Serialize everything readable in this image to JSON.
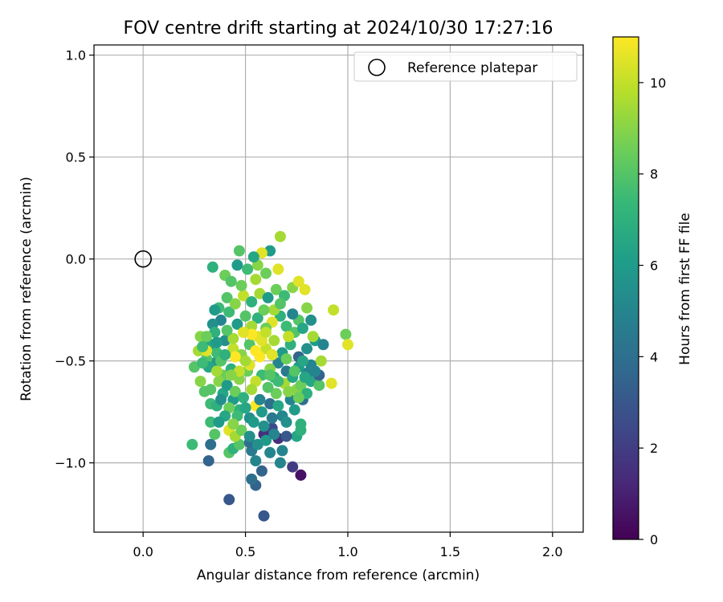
{
  "chart_data": {
    "type": "scatter",
    "title": "FOV centre drift starting at 2024/10/30 17:27:16",
    "xlabel": "Angular distance from reference (arcmin)",
    "ylabel": "Rotation from reference (arcmin)",
    "xlim": [
      -0.24,
      2.15
    ],
    "ylim": [
      -1.34,
      1.05
    ],
    "xticks": [
      0.0,
      0.5,
      1.0,
      1.5,
      2.0
    ],
    "xtick_labels": [
      "0.0",
      "0.5",
      "1.0",
      "1.5",
      "2.0"
    ],
    "yticks": [
      1.0,
      0.5,
      0.0,
      -0.5,
      -1.0
    ],
    "ytick_labels": [
      "1.0",
      "0.5",
      "0.0",
      "−0.5",
      "−1.0"
    ],
    "grid": true,
    "legend": {
      "position": "upper right",
      "entries": [
        {
          "label": "Reference platepar",
          "marker": "open-circle"
        }
      ]
    },
    "reference_point": {
      "x": 0.0,
      "y": 0.0
    },
    "colorbar": {
      "label": "Hours from first FF file",
      "colormap": "viridis",
      "range": [
        0,
        11
      ],
      "ticks": [
        0,
        2,
        4,
        6,
        8,
        10
      ],
      "tick_labels": [
        "0",
        "2",
        "4",
        "6",
        "8",
        "10"
      ]
    },
    "points": [
      [
        0.59,
        -1.26,
        3.0
      ],
      [
        0.42,
        -1.18,
        3.0
      ],
      [
        0.55,
        -1.11,
        3.5
      ],
      [
        0.58,
        -1.04,
        3.5
      ],
      [
        0.53,
        -1.08,
        4.0
      ],
      [
        0.32,
        -0.99,
        3.5
      ],
      [
        0.73,
        -1.02,
        2.0
      ],
      [
        0.77,
        -1.06,
        0.5
      ],
      [
        0.55,
        -0.99,
        5.0
      ],
      [
        0.67,
        -1.0,
        5.0
      ],
      [
        0.24,
        -0.91,
        7.5
      ],
      [
        0.33,
        -0.91,
        4.0
      ],
      [
        0.42,
        -0.95,
        8.0
      ],
      [
        0.44,
        -0.93,
        7.0
      ],
      [
        0.47,
        -0.91,
        8.0
      ],
      [
        0.53,
        -0.94,
        4.5
      ],
      [
        0.62,
        -0.95,
        5.0
      ],
      [
        0.68,
        -0.94,
        5.0
      ],
      [
        0.75,
        -0.87,
        6.5
      ],
      [
        0.77,
        -0.84,
        7.0
      ],
      [
        0.59,
        -0.86,
        1.5
      ],
      [
        0.66,
        -0.88,
        1.5
      ],
      [
        0.63,
        -0.83,
        2.5
      ],
      [
        0.7,
        -0.87,
        3.0
      ],
      [
        0.52,
        -0.9,
        4.0
      ],
      [
        0.35,
        -0.86,
        8.0
      ],
      [
        0.33,
        -0.8,
        7.5
      ],
      [
        0.42,
        -0.84,
        10.5
      ],
      [
        0.45,
        -0.87,
        9.5
      ],
      [
        0.77,
        -0.81,
        7.0
      ],
      [
        0.33,
        -0.71,
        7.5
      ],
      [
        0.36,
        -0.72,
        7.0
      ],
      [
        0.39,
        -0.66,
        6.5
      ],
      [
        0.28,
        -0.6,
        9.0
      ],
      [
        0.3,
        -0.65,
        8.0
      ],
      [
        0.44,
        -0.69,
        6.0
      ],
      [
        0.47,
        -0.74,
        7.0
      ],
      [
        0.55,
        -0.72,
        11.0
      ],
      [
        0.52,
        -0.78,
        5.5
      ],
      [
        0.58,
        -0.75,
        6.0
      ],
      [
        0.62,
        -0.71,
        4.0
      ],
      [
        0.68,
        -0.77,
        5.0
      ],
      [
        0.65,
        -0.66,
        8.5
      ],
      [
        0.72,
        -0.69,
        5.0
      ],
      [
        0.75,
        -0.64,
        9.0
      ],
      [
        0.78,
        -0.69,
        4.0
      ],
      [
        0.82,
        -0.6,
        6.5
      ],
      [
        0.86,
        -0.62,
        8.0
      ],
      [
        0.92,
        -0.61,
        10.5
      ],
      [
        0.86,
        -0.57,
        3.5
      ],
      [
        0.8,
        -0.56,
        5.0
      ],
      [
        0.76,
        -0.53,
        6.0
      ],
      [
        0.7,
        -0.55,
        4.5
      ],
      [
        0.66,
        -0.51,
        5.0
      ],
      [
        0.62,
        -0.54,
        9.0
      ],
      [
        0.58,
        -0.57,
        7.5
      ],
      [
        0.55,
        -0.6,
        10.0
      ],
      [
        0.51,
        -0.55,
        8.5
      ],
      [
        0.47,
        -0.59,
        9.0
      ],
      [
        0.43,
        -0.54,
        7.0
      ],
      [
        0.39,
        -0.57,
        8.5
      ],
      [
        0.35,
        -0.51,
        6.0
      ],
      [
        0.31,
        -0.49,
        8.0
      ],
      [
        0.27,
        -0.45,
        9.5
      ],
      [
        0.25,
        -0.53,
        8.0
      ],
      [
        0.28,
        -0.38,
        9.0
      ],
      [
        0.33,
        -0.42,
        6.5
      ],
      [
        0.36,
        -0.46,
        7.5
      ],
      [
        0.4,
        -0.4,
        5.5
      ],
      [
        0.44,
        -0.44,
        10.0
      ],
      [
        0.48,
        -0.47,
        9.0
      ],
      [
        0.52,
        -0.42,
        8.0
      ],
      [
        0.56,
        -0.38,
        10.5
      ],
      [
        0.6,
        -0.44,
        10.0
      ],
      [
        0.64,
        -0.4,
        9.5
      ],
      [
        0.68,
        -0.46,
        6.0
      ],
      [
        0.72,
        -0.42,
        7.0
      ],
      [
        0.76,
        -0.48,
        3.5
      ],
      [
        0.8,
        -0.44,
        5.5
      ],
      [
        0.84,
        -0.4,
        6.0
      ],
      [
        0.88,
        -0.42,
        5.0
      ],
      [
        0.87,
        -0.5,
        9.5
      ],
      [
        0.82,
        -0.52,
        5.0
      ],
      [
        0.78,
        -0.5,
        6.5
      ],
      [
        0.99,
        -0.37,
        8.5
      ],
      [
        1.0,
        -0.42,
        10.5
      ],
      [
        0.93,
        -0.25,
        10.0
      ],
      [
        0.83,
        -0.38,
        9.5
      ],
      [
        0.8,
        -0.24,
        9.0
      ],
      [
        0.76,
        -0.3,
        8.0
      ],
      [
        0.73,
        -0.27,
        5.0
      ],
      [
        0.7,
        -0.33,
        7.5
      ],
      [
        0.67,
        -0.28,
        7.0
      ],
      [
        0.63,
        -0.31,
        10.5
      ],
      [
        0.6,
        -0.34,
        8.5
      ],
      [
        0.56,
        -0.29,
        7.0
      ],
      [
        0.53,
        -0.33,
        9.5
      ],
      [
        0.5,
        -0.28,
        8.0
      ],
      [
        0.46,
        -0.32,
        6.0
      ],
      [
        0.42,
        -0.26,
        7.5
      ],
      [
        0.38,
        -0.3,
        5.0
      ],
      [
        0.34,
        -0.32,
        5.5
      ],
      [
        0.37,
        -0.24,
        7.5
      ],
      [
        0.41,
        -0.19,
        8.0
      ],
      [
        0.45,
        -0.22,
        9.0
      ],
      [
        0.49,
        -0.18,
        10.0
      ],
      [
        0.53,
        -0.21,
        7.0
      ],
      [
        0.57,
        -0.17,
        9.5
      ],
      [
        0.61,
        -0.19,
        6.0
      ],
      [
        0.65,
        -0.15,
        8.5
      ],
      [
        0.69,
        -0.18,
        7.5
      ],
      [
        0.73,
        -0.14,
        9.0
      ],
      [
        0.76,
        -0.11,
        10.5
      ],
      [
        0.79,
        -0.15,
        10.5
      ],
      [
        0.4,
        -0.08,
        8.5
      ],
      [
        0.43,
        -0.11,
        8.0
      ],
      [
        0.48,
        -0.13,
        8.5
      ],
      [
        0.55,
        -0.1,
        9.5
      ],
      [
        0.6,
        -0.07,
        8.5
      ],
      [
        0.56,
        -0.03,
        9.0
      ],
      [
        0.62,
        0.04,
        6.0
      ],
      [
        0.58,
        0.03,
        10.5
      ],
      [
        0.54,
        0.01,
        6.5
      ],
      [
        0.51,
        -0.05,
        7.5
      ],
      [
        0.47,
        0.04,
        8.0
      ],
      [
        0.46,
        -0.03,
        6.0
      ],
      [
        0.34,
        -0.04,
        7.0
      ],
      [
        0.66,
        -0.05,
        10.5
      ],
      [
        0.67,
        0.11,
        9.5
      ],
      [
        0.35,
        -0.25,
        6.0
      ],
      [
        0.32,
        -0.53,
        6.5
      ],
      [
        0.29,
        -0.51,
        7.5
      ],
      [
        0.31,
        -0.45,
        10.5
      ],
      [
        0.37,
        -0.6,
        9.0
      ],
      [
        0.41,
        -0.62,
        6.0
      ],
      [
        0.45,
        -0.65,
        8.5
      ],
      [
        0.49,
        -0.68,
        7.0
      ],
      [
        0.53,
        -0.64,
        9.5
      ],
      [
        0.57,
        -0.69,
        5.0
      ],
      [
        0.61,
        -0.63,
        8.0
      ],
      [
        0.64,
        -0.58,
        7.0
      ],
      [
        0.69,
        -0.61,
        9.5
      ],
      [
        0.73,
        -0.58,
        6.5
      ],
      [
        0.77,
        -0.62,
        8.5
      ],
      [
        0.8,
        -0.66,
        7.0
      ],
      [
        0.55,
        -0.45,
        11.0
      ],
      [
        0.58,
        -0.4,
        10.5
      ],
      [
        0.53,
        -0.37,
        11.0
      ],
      [
        0.57,
        -0.48,
        11.0
      ],
      [
        0.6,
        -0.36,
        10.0
      ],
      [
        0.52,
        -0.52,
        10.5
      ],
      [
        0.49,
        -0.36,
        10.5
      ],
      [
        0.45,
        -0.48,
        11.0
      ],
      [
        0.63,
        -0.47,
        10.5
      ],
      [
        0.5,
        -0.5,
        9.5
      ],
      [
        0.47,
        -0.55,
        10.0
      ],
      [
        0.43,
        -0.57,
        9.0
      ],
      [
        0.38,
        -0.5,
        8.0
      ],
      [
        0.36,
        -0.55,
        9.5
      ],
      [
        0.4,
        -0.47,
        7.0
      ],
      [
        0.66,
        -0.6,
        7.5
      ],
      [
        0.71,
        -0.65,
        9.0
      ],
      [
        0.74,
        -0.55,
        8.0
      ],
      [
        0.79,
        -0.58,
        6.5
      ],
      [
        0.84,
        -0.55,
        5.0
      ],
      [
        0.7,
        -0.49,
        8.5
      ],
      [
        0.74,
        -0.36,
        8.0
      ],
      [
        0.78,
        -0.34,
        6.5
      ],
      [
        0.82,
        -0.3,
        5.5
      ],
      [
        0.71,
        -0.38,
        10.0
      ],
      [
        0.64,
        -0.25,
        9.5
      ],
      [
        0.67,
        -0.22,
        8.0
      ],
      [
        0.59,
        -0.25,
        8.5
      ],
      [
        0.44,
        -0.39,
        9.5
      ],
      [
        0.41,
        -0.35,
        8.0
      ],
      [
        0.35,
        -0.36,
        7.0
      ],
      [
        0.31,
        -0.38,
        8.5
      ],
      [
        0.29,
        -0.43,
        7.5
      ],
      [
        0.33,
        -0.64,
        8.0
      ],
      [
        0.38,
        -0.69,
        5.5
      ],
      [
        0.42,
        -0.73,
        8.5
      ],
      [
        0.46,
        -0.77,
        7.5
      ],
      [
        0.5,
        -0.73,
        6.5
      ],
      [
        0.54,
        -0.8,
        6.0
      ],
      [
        0.59,
        -0.82,
        5.5
      ],
      [
        0.63,
        -0.78,
        4.5
      ],
      [
        0.66,
        -0.72,
        6.5
      ],
      [
        0.7,
        -0.8,
        5.5
      ],
      [
        0.74,
        -0.74,
        6.0
      ],
      [
        0.76,
        -0.68,
        8.5
      ],
      [
        0.48,
        -0.84,
        8.5
      ],
      [
        0.44,
        -0.81,
        9.0
      ],
      [
        0.4,
        -0.77,
        6.5
      ],
      [
        0.37,
        -0.8,
        6.0
      ],
      [
        0.52,
        -0.87,
        5.5
      ],
      [
        0.56,
        -0.91,
        5.5
      ],
      [
        0.6,
        -0.89,
        6.0
      ],
      [
        0.64,
        -0.86,
        5.0
      ],
      [
        0.36,
        -0.41,
        6.0
      ],
      [
        0.62,
        -0.57,
        8.0
      ]
    ]
  }
}
